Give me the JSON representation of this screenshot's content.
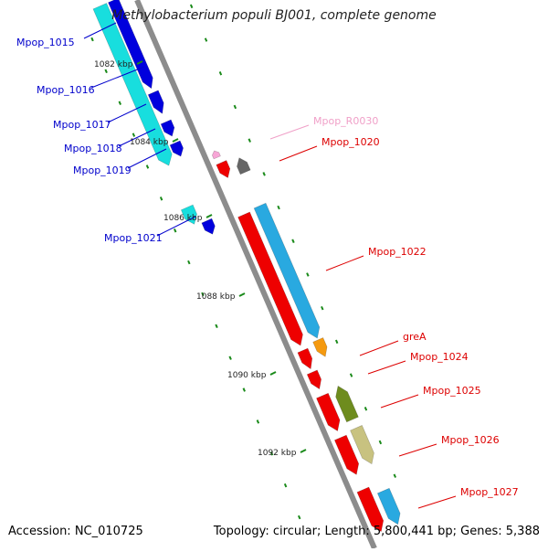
{
  "title": "Methylobacterium populi BJ001, complete genome",
  "accession": "Accession: NC_010725",
  "topology": "Topology: circular; Length: 5,800,441 bp; Genes: 5,388",
  "colors": {
    "backbone": "#8c8c8c",
    "tick": "#1a8a1a",
    "label_blue": "#0000cc",
    "label_red": "#dd0000",
    "label_pink": "#f0a0c8",
    "blue_gene": "#0000dd",
    "cyan_gene": "#18dede",
    "red_gene": "#ee0000",
    "sky_gene": "#29a9e0",
    "orange_gene": "#f59a10",
    "olive_gene": "#6e8c1e",
    "khaki_gene": "#c8c280",
    "gray_gene": "#666666",
    "pink_gene": "#f7a6d6"
  },
  "scale_labels": [
    "1082 kbp",
    "1084 kbp",
    "1086 kbp",
    "1088 kbp",
    "1090 kbp",
    "1092 kbp"
  ],
  "gene_labels_left": [
    "Mpop_1015",
    "Mpop_1016",
    "Mpop_1017",
    "Mpop_1018",
    "Mpop_1019",
    "Mpop_1021"
  ],
  "gene_labels_right": [
    "Mpop_R0030",
    "Mpop_1020",
    "Mpop_1022",
    "greA",
    "Mpop_1024",
    "Mpop_1025",
    "Mpop_1026",
    "Mpop_1027"
  ]
}
